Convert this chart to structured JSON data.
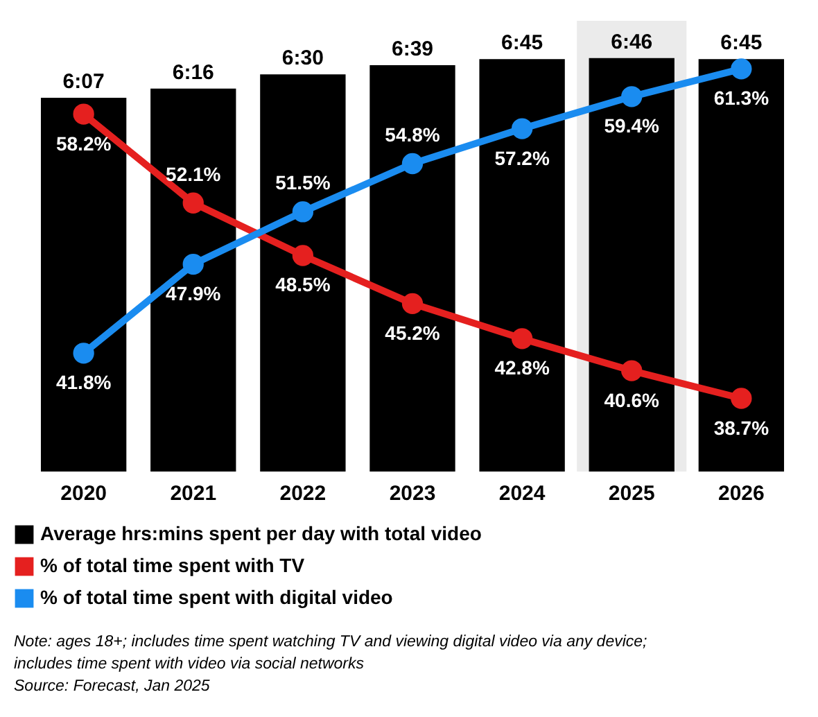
{
  "chart_data": {
    "type": "bar",
    "categories": [
      "2020",
      "2021",
      "2022",
      "2023",
      "2024",
      "2025",
      "2026"
    ],
    "series": [
      {
        "name": "Average hrs:mins spent per day with total video",
        "color": "#000000",
        "values": [
          367,
          376,
          390,
          399,
          405,
          406,
          405
        ],
        "value_labels": [
          "6:07",
          "6:16",
          "6:30",
          "6:39",
          "6:45",
          "6:46",
          "6:45"
        ]
      },
      {
        "name": "% of total time spent with TV",
        "type": "line",
        "axis": "y2",
        "color": "#e5201f",
        "values": [
          58.2,
          52.1,
          48.5,
          45.2,
          42.8,
          40.6,
          38.7
        ],
        "value_labels": [
          "58.2%",
          "52.1%",
          "48.5%",
          "45.2%",
          "42.8%",
          "40.6%",
          "38.7%"
        ]
      },
      {
        "name": "% of total time spent with digital video",
        "type": "line",
        "axis": "y2",
        "color": "#1a8cf0",
        "values": [
          41.8,
          47.9,
          51.5,
          54.8,
          57.2,
          59.4,
          61.3
        ],
        "value_labels": [
          "41.8%",
          "47.9%",
          "51.5%",
          "54.8%",
          "57.2%",
          "59.4%",
          "61.3%"
        ]
      }
    ],
    "bands": [
      {
        "axis": "x",
        "from": "2025",
        "to": "2025",
        "color": "#ebebeb"
      }
    ],
    "marker": "circle",
    "legend": "bottom left",
    "grid": false,
    "tick_labels": "x",
    "annotations": [
      "Note: ages 18+; includes time spent watching TV and viewing digital video via any device;",
      "includes time spent with video via social networks",
      "Source: Forecast, Jan 2025"
    ]
  }
}
